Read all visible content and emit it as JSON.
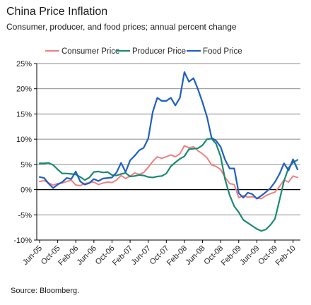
{
  "title": "China Price Inflation",
  "subtitle": "Consumer, producer, and food prices; annual percent change",
  "source": "Source: Bloomberg.",
  "chart_data": {
    "type": "line",
    "ylim": [
      -10,
      25
    ],
    "y_ticks": [
      -10,
      -5,
      0,
      5,
      10,
      15,
      20,
      25
    ],
    "y_tick_labels": [
      "-10%",
      "-5%",
      "0%",
      "5%",
      "10%",
      "15%",
      "20%",
      "25%"
    ],
    "x_tick_labels": [
      "Jun-05",
      "Oct-05",
      "Feb-06",
      "Jun-06",
      "Oct-06",
      "Feb-07",
      "Jun-07",
      "Oct-07",
      "Feb-08",
      "Jun-08",
      "Oct-08",
      "Feb-09",
      "Jun-09",
      "Oct-09",
      "Feb-10"
    ],
    "x_tick_index": [
      0,
      4,
      8,
      12,
      16,
      20,
      24,
      28,
      32,
      36,
      40,
      44,
      48,
      52,
      56
    ],
    "legend_position": "top",
    "grid": "horizontal",
    "x": [
      "Jun-05",
      "Jul-05",
      "Aug-05",
      "Sep-05",
      "Oct-05",
      "Nov-05",
      "Dec-05",
      "Jan-06",
      "Feb-06",
      "Mar-06",
      "Apr-06",
      "May-06",
      "Jun-06",
      "Jul-06",
      "Aug-06",
      "Sep-06",
      "Oct-06",
      "Nov-06",
      "Dec-06",
      "Jan-07",
      "Feb-07",
      "Mar-07",
      "Apr-07",
      "May-07",
      "Jun-07",
      "Jul-07",
      "Aug-07",
      "Sep-07",
      "Oct-07",
      "Nov-07",
      "Dec-07",
      "Jan-08",
      "Feb-08",
      "Mar-08",
      "Apr-08",
      "May-08",
      "Jun-08",
      "Jul-08",
      "Aug-08",
      "Sep-08",
      "Oct-08",
      "Nov-08",
      "Dec-08",
      "Jan-09",
      "Feb-09",
      "Mar-09",
      "Apr-09",
      "May-09",
      "Jun-09",
      "Jul-09",
      "Aug-09",
      "Sep-09",
      "Oct-09",
      "Nov-09",
      "Dec-09",
      "Jan-10",
      "Feb-10",
      "Mar-10"
    ],
    "series": [
      {
        "name": "Consumer Price",
        "color": "#f08080",
        "values": [
          1.6,
          1.8,
          1.3,
          0.9,
          1.2,
          1.3,
          1.6,
          1.9,
          0.9,
          0.8,
          1.2,
          1.4,
          1.5,
          1.0,
          1.3,
          1.5,
          1.4,
          1.9,
          2.8,
          2.2,
          2.7,
          3.3,
          3.0,
          3.4,
          4.4,
          5.6,
          6.5,
          6.2,
          6.5,
          6.9,
          6.5,
          7.1,
          8.7,
          8.3,
          8.5,
          7.7,
          7.1,
          6.3,
          4.9,
          4.6,
          4.0,
          2.4,
          1.2,
          1.0,
          -1.6,
          -1.2,
          -1.5,
          -1.4,
          -1.7,
          -1.8,
          -1.2,
          -0.8,
          -0.5,
          0.6,
          1.9,
          1.5,
          2.7,
          2.4
        ]
      },
      {
        "name": "Producer Price",
        "color": "#1a8a72",
        "values": [
          5.2,
          5.2,
          5.3,
          4.9,
          4.0,
          3.2,
          3.2,
          3.1,
          3.0,
          2.5,
          1.9,
          2.4,
          3.5,
          3.6,
          3.4,
          3.5,
          2.9,
          2.8,
          3.1,
          3.3,
          2.6,
          2.7,
          2.9,
          2.8,
          2.5,
          2.4,
          2.6,
          2.7,
          3.2,
          4.6,
          5.4,
          6.1,
          6.6,
          8.0,
          8.1,
          8.2,
          8.8,
          10.0,
          10.1,
          9.1,
          6.6,
          2.0,
          -1.1,
          -3.3,
          -4.5,
          -6.0,
          -6.6,
          -7.2,
          -7.8,
          -8.2,
          -7.9,
          -7.0,
          -5.8,
          -2.1,
          1.7,
          4.3,
          5.4,
          5.9
        ]
      },
      {
        "name": "Food Price",
        "color": "#1f5fc0",
        "values": [
          2.5,
          2.3,
          1.2,
          0.3,
          1.0,
          1.5,
          2.3,
          2.1,
          3.6,
          1.6,
          1.0,
          1.3,
          2.1,
          1.7,
          2.2,
          2.3,
          2.4,
          3.4,
          5.3,
          3.5,
          5.8,
          6.7,
          7.8,
          8.3,
          10.1,
          15.4,
          18.2,
          17.6,
          17.6,
          18.2,
          16.7,
          18.2,
          23.3,
          21.4,
          22.1,
          19.9,
          17.3,
          14.4,
          10.3,
          9.7,
          8.5,
          5.9,
          4.2,
          4.2,
          -0.7,
          -1.6,
          -0.6,
          -0.9,
          -1.8,
          -1.2,
          -0.5,
          0.3,
          1.5,
          3.1,
          5.2,
          3.8,
          6.0,
          4.0
        ]
      }
    ]
  }
}
